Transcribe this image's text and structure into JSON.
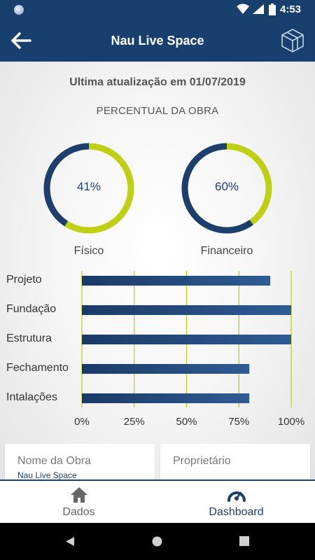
{
  "status_bar": {
    "time": "4:53"
  },
  "app_bar": {
    "title": "Nau Live Space"
  },
  "update_text": "Ultima atualização em 01/07/2019",
  "section_title": "PERCENTUAL DA OBRA",
  "colors": {
    "primary": "#1d3f6e",
    "accent": "#bfd012",
    "header": "#18406e"
  },
  "donuts": [
    {
      "label": "Físico",
      "percent_text": "41%",
      "value": 41
    },
    {
      "label": "Financeiro",
      "percent_text": "60%",
      "value": 60
    }
  ],
  "chart_data": {
    "type": "bar",
    "orientation": "horizontal",
    "categories": [
      "Projeto",
      "Fundação",
      "Estrutura",
      "Fechamento",
      "Intalações"
    ],
    "values": [
      90,
      100,
      100,
      80,
      80
    ],
    "xlim": [
      0,
      100
    ],
    "tick_labels": [
      "0%",
      "25%",
      "50%",
      "75%",
      "100%"
    ],
    "ticks": [
      0,
      25,
      50,
      75,
      100
    ],
    "grid": true
  },
  "cards": [
    {
      "label": "Nome da Obra",
      "value": "Nau Live Space"
    },
    {
      "label": "Proprietário",
      "value": ""
    }
  ],
  "bottom_nav": [
    {
      "label": "Dados",
      "icon": "home-icon",
      "active": false
    },
    {
      "label": "Dashboard",
      "icon": "speedometer-icon",
      "active": true
    }
  ]
}
